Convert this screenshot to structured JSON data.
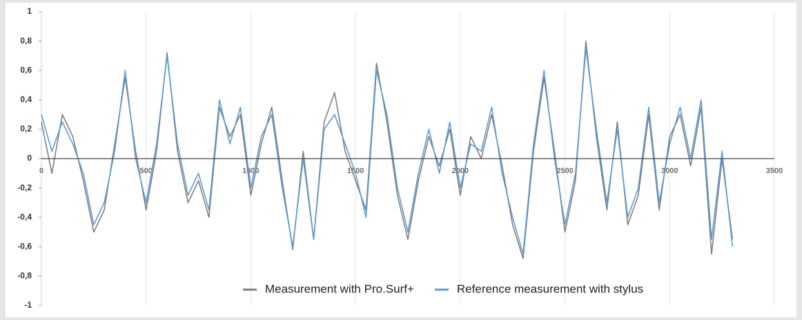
{
  "chart_data": {
    "type": "line",
    "x": [
      0,
      50,
      100,
      150,
      200,
      250,
      300,
      350,
      400,
      450,
      500,
      550,
      600,
      650,
      700,
      750,
      800,
      850,
      900,
      950,
      1000,
      1050,
      1100,
      1150,
      1200,
      1250,
      1300,
      1350,
      1400,
      1450,
      1500,
      1550,
      1600,
      1650,
      1700,
      1750,
      1800,
      1850,
      1900,
      1950,
      2000,
      2050,
      2100,
      2150,
      2200,
      2250,
      2300,
      2350,
      2400,
      2450,
      2500,
      2550,
      2600,
      2650,
      2700,
      2750,
      2800,
      2850,
      2900,
      2950,
      3000,
      3050,
      3100,
      3150,
      3200,
      3250,
      3300
    ],
    "series": [
      {
        "name": "Measurement with Pro.Surf+",
        "color": "#7f7f7f",
        "values": [
          0.25,
          -0.1,
          0.3,
          0.15,
          -0.15,
          -0.5,
          -0.35,
          0.1,
          0.55,
          0.05,
          -0.35,
          0.05,
          0.72,
          0.05,
          -0.3,
          -0.15,
          -0.4,
          0.35,
          0.15,
          0.3,
          -0.25,
          0.1,
          0.35,
          -0.15,
          -0.62,
          0.05,
          -0.55,
          0.25,
          0.45,
          0.05,
          -0.15,
          -0.35,
          0.65,
          0.25,
          -0.25,
          -0.55,
          -0.15,
          0.15,
          -0.05,
          0.2,
          -0.25,
          0.15,
          0.0,
          0.3,
          -0.05,
          -0.45,
          -0.68,
          0.05,
          0.55,
          0.05,
          -0.5,
          -0.15,
          0.8,
          0.15,
          -0.35,
          0.25,
          -0.45,
          -0.25,
          0.3,
          -0.35,
          0.15,
          0.3,
          -0.05,
          0.35,
          -0.65,
          0.0,
          -0.55
        ]
      },
      {
        "name": "Reference measurement with stylus",
        "color": "#5b9bd5",
        "values": [
          0.3,
          0.05,
          0.25,
          0.1,
          -0.1,
          -0.45,
          -0.3,
          0.05,
          0.6,
          0.0,
          -0.3,
          0.1,
          0.7,
          0.1,
          -0.25,
          -0.1,
          -0.35,
          0.4,
          0.1,
          0.35,
          -0.2,
          0.15,
          0.3,
          -0.2,
          -0.6,
          0.0,
          -0.55,
          0.2,
          0.3,
          0.1,
          -0.1,
          -0.4,
          0.6,
          0.3,
          -0.2,
          -0.5,
          -0.1,
          0.2,
          -0.1,
          0.25,
          -0.2,
          0.1,
          0.05,
          0.35,
          -0.1,
          -0.4,
          -0.65,
          0.1,
          0.6,
          0.0,
          -0.45,
          -0.1,
          0.75,
          0.2,
          -0.3,
          0.2,
          -0.4,
          -0.2,
          0.35,
          -0.3,
          0.1,
          0.35,
          0.0,
          0.4,
          -0.55,
          0.05,
          -0.6
        ]
      }
    ],
    "xlim": [
      0,
      3500
    ],
    "xticks": [
      0,
      500,
      1000,
      1500,
      2000,
      2500,
      3000,
      3500
    ],
    "ylim": [
      -1,
      1
    ],
    "yticks": [
      -1,
      {
        "value": -0.8,
        "label": "-0,8"
      },
      {
        "value": -0.6,
        "label": "-0,6"
      },
      {
        "value": -0.4,
        "label": "-0,4"
      },
      {
        "value": -0.2,
        "label": "-0,2"
      },
      0,
      {
        "value": 0.2,
        "label": "0,2"
      },
      {
        "value": 0.4,
        "label": "0,4"
      },
      {
        "value": 0.6,
        "label": "0,6"
      },
      {
        "value": 0.8,
        "label": "0,8"
      },
      1
    ],
    "grid": true,
    "legend": "bottom"
  }
}
